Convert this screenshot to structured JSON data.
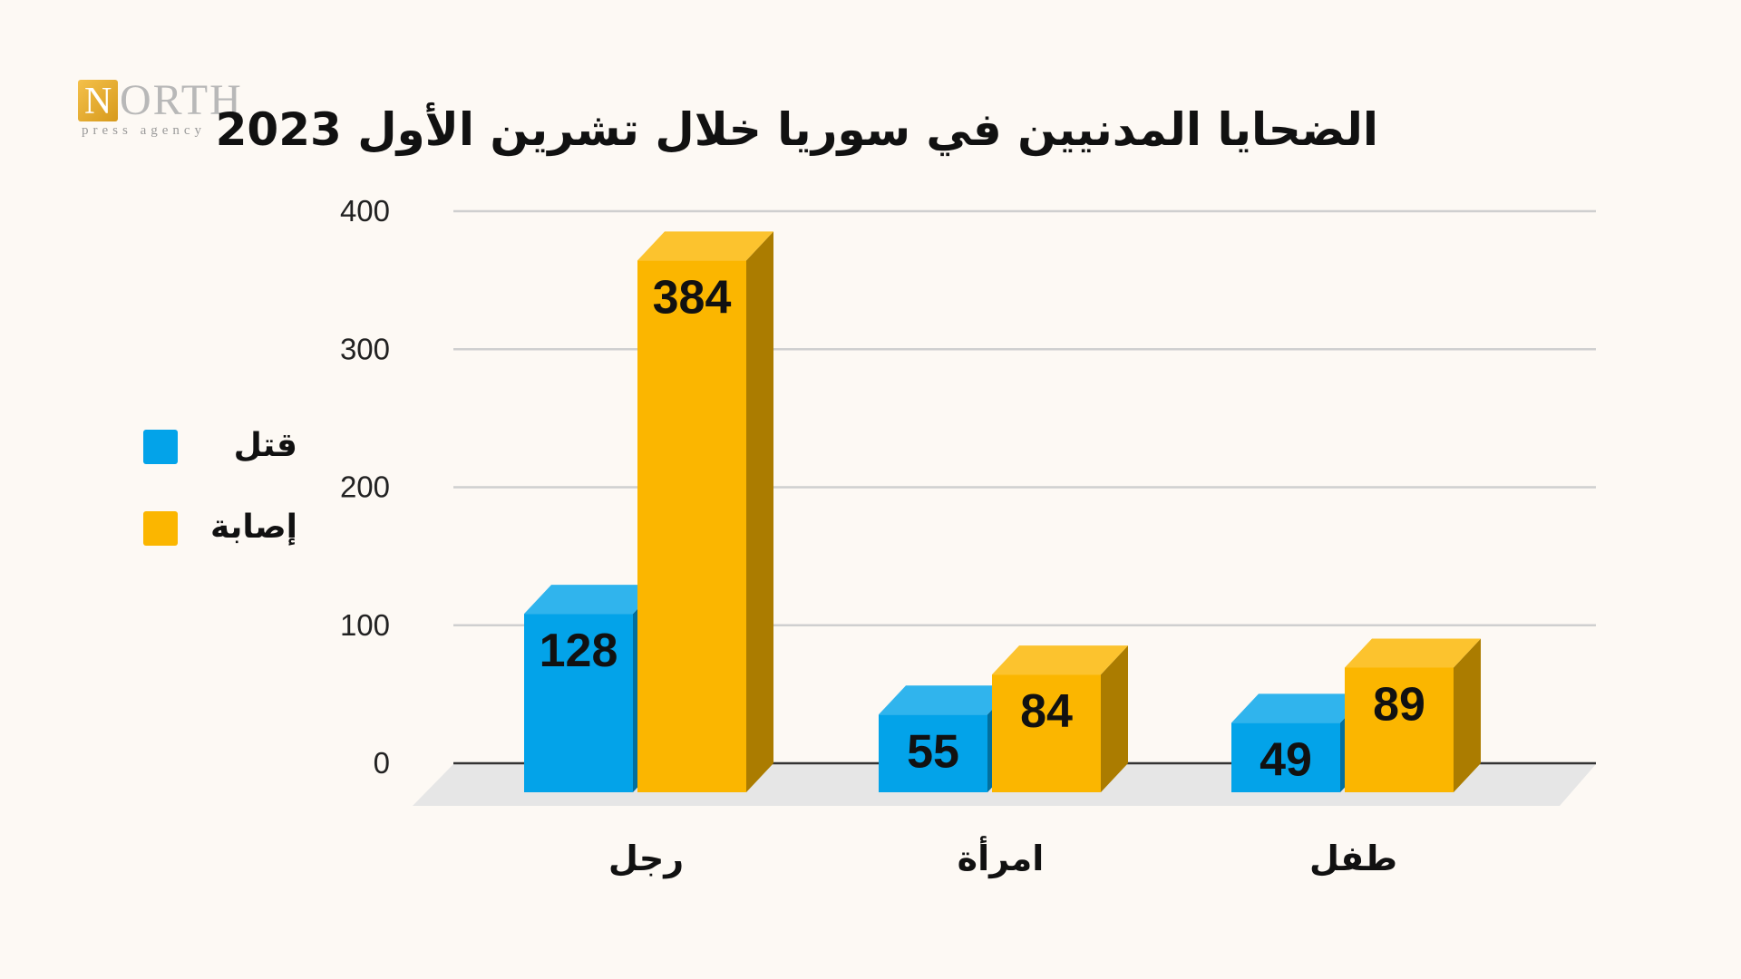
{
  "logo": {
    "mark_letter": "N",
    "word": "ORTH",
    "subtitle": "press agency"
  },
  "chart_data": {
    "type": "bar",
    "title": "الضحايا المدنيين في سوريا خلال تشرين الأول 2023",
    "categories": [
      "رجل",
      "امرأة",
      "طفل"
    ],
    "series": [
      {
        "name": "قتل",
        "values": [
          128,
          55,
          49
        ],
        "color": "#03a3e9"
      },
      {
        "name": "إصابة",
        "values": [
          384,
          84,
          89
        ],
        "color": "#fbb600"
      }
    ],
    "y_ticks": [
      0,
      100,
      200,
      300,
      400
    ],
    "ylim": [
      0,
      400
    ],
    "grid": true,
    "legend_position": "left",
    "style": "3d-bars"
  }
}
